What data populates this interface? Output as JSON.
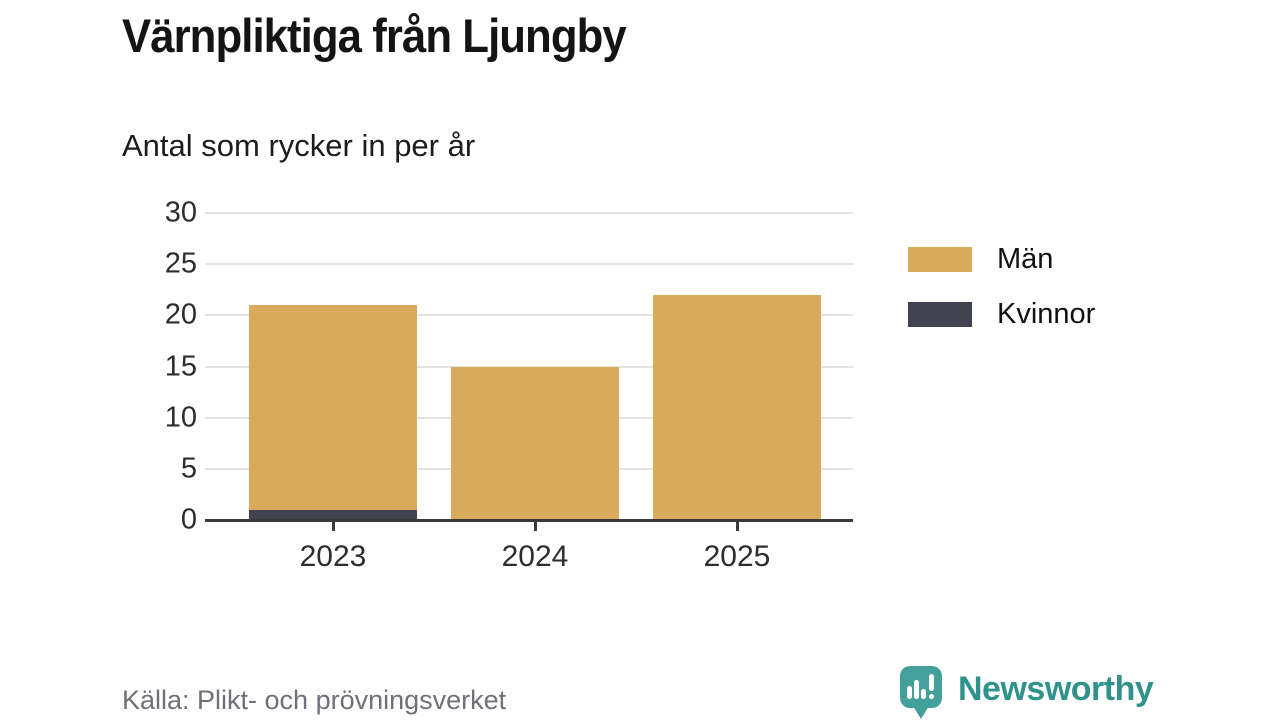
{
  "header": {
    "title": "Värnpliktiga från Ljungby",
    "subtitle": "Antal som rycker in per år"
  },
  "chart_data": {
    "type": "bar",
    "stacked": true,
    "categories": [
      "2023",
      "2024",
      "2025"
    ],
    "series": [
      {
        "name": "Kvinnor",
        "color": "#434250",
        "values": [
          1,
          0,
          0
        ]
      },
      {
        "name": "Män",
        "color": "#d9a95c",
        "values": [
          20,
          15,
          22
        ]
      }
    ],
    "totals": [
      21,
      15,
      22
    ],
    "title": "Värnpliktiga från Ljungby",
    "subtitle": "Antal som rycker in per år",
    "xlabel": "",
    "ylabel": "",
    "ylim": [
      0,
      30
    ],
    "yticks": [
      0,
      5,
      10,
      15,
      20,
      25,
      30
    ],
    "grid": "horizontal",
    "legend_position": "right"
  },
  "legend": {
    "items": [
      {
        "label": "Män",
        "color": "#d9a95c"
      },
      {
        "label": "Kvinnor",
        "color": "#434250"
      }
    ]
  },
  "footer": {
    "source": "Källa: Plikt- och prövningsverket",
    "brand": "Newsworthy",
    "brand_color": "#2f938b",
    "logo_color": "#43a09a"
  }
}
